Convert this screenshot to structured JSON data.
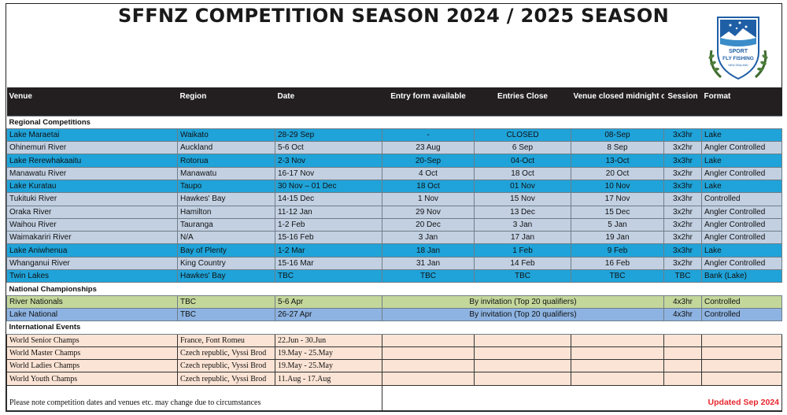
{
  "title": "SFFNZ COMPETITION SEASON 2024 / 2025 SEASON",
  "logo": {
    "line1": "SPORT",
    "line2": "FLY FISHING",
    "line3": "NEW ZEALAND"
  },
  "headers": [
    "Venue",
    "Region",
    "Date",
    "Entry form available",
    "Entries Close",
    "Venue closed midnight of",
    "Session",
    "Format"
  ],
  "sections": {
    "regional": "Regional Competitions",
    "national": "National Championships",
    "international": "International Events"
  },
  "regional_rows": [
    {
      "style": "blue",
      "venue": "Lake Maraetai",
      "region": "Waikato",
      "date": "28-29 Sep",
      "entry": "-",
      "close": "CLOSED",
      "closed": "08-Sep",
      "session": "3x3hr",
      "format": "Lake"
    },
    {
      "style": "grey",
      "venue": "Ohinemuri River",
      "region": "Auckland",
      "date": "5-6 Oct",
      "entry": "23 Aug",
      "close": "6 Sep",
      "closed": "8 Sep",
      "session": "3x2hr",
      "format": "Angler Controlled"
    },
    {
      "style": "blue",
      "venue": "Lake Rerewhakaaitu",
      "region": "Rotorua",
      "date": "2-3 Nov",
      "entry": "20-Sep",
      "close": "04-Oct",
      "closed": "13-Oct",
      "session": "3x3hr",
      "format": "Lake"
    },
    {
      "style": "grey",
      "venue": "Manawatu River",
      "region": "Manawatu",
      "date": "16-17 Nov",
      "entry": "4 Oct",
      "close": "18 Oct",
      "closed": "20 Oct",
      "session": "3x2hr",
      "format": "Angler Controlled"
    },
    {
      "style": "blue",
      "venue": "Lake Kuratau",
      "region": "Taupo",
      "date": "30 Nov – 01 Dec",
      "entry": "18 Oct",
      "close": "01 Nov",
      "closed": "10 Nov",
      "session": "3x3hr",
      "format": "Lake"
    },
    {
      "style": "grey",
      "venue": "Tukituki River",
      "region": "Hawkes' Bay",
      "date": "14-15 Dec",
      "entry": "1 Nov",
      "close": "15 Nov",
      "closed": "17 Nov",
      "session": "3x3hr",
      "format": "Controlled"
    },
    {
      "style": "grey",
      "venue": "Oraka River",
      "region": "Hamilton",
      "date": "11-12 Jan",
      "entry": "29 Nov",
      "close": "13 Dec",
      "closed": "15 Dec",
      "session": "3x2hr",
      "format": "Angler Controlled"
    },
    {
      "style": "grey",
      "venue": "Waihou River",
      "region": "Tauranga",
      "date": "1-2 Feb",
      "entry": "20 Dec",
      "close": "3 Jan",
      "closed": "5 Jan",
      "session": "3x2hr",
      "format": "Angler Controlled"
    },
    {
      "style": "grey",
      "venue": "Waimakariri River",
      "region": "N/A",
      "date": "15-16 Feb",
      "entry": "3 Jan",
      "close": "17 Jan",
      "closed": "19 Jan",
      "session": "3x2hr",
      "format": "Angler Controlled"
    },
    {
      "style": "blue",
      "venue": "Lake Aniwhenua",
      "region": "Bay of Plenty",
      "date": "1-2 Mar",
      "entry": "18 Jan",
      "close": "1 Feb",
      "closed": "9 Feb",
      "session": "3x3hr",
      "format": "Lake"
    },
    {
      "style": "grey",
      "venue": "Whanganui River",
      "region": "King Country",
      "date": "15-16 Mar",
      "entry": "31 Jan",
      "close": "14 Feb",
      "closed": "16 Feb",
      "session": "3x2hr",
      "format": "Angler Controlled"
    },
    {
      "style": "blue",
      "venue": "Twin Lakes",
      "region": "Hawkes' Bay",
      "date": "TBC",
      "entry": "TBC",
      "close": "TBC",
      "closed": "TBC",
      "session": "TBC",
      "format": "Bank (Lake)"
    }
  ],
  "national_rows": [
    {
      "style": "green",
      "venue": "River Nationals",
      "region": "TBC",
      "date": "5-6 Apr",
      "note": "By invitation (Top 20 qualifiers)",
      "session": "4x3hr",
      "format": "Controlled"
    },
    {
      "style": "natblue",
      "venue": "Lake National",
      "region": "TBC",
      "date": "26-27 Apr",
      "note": "By invitation (Top 20 qualifiers)",
      "session": "4x3hr",
      "format": "Controlled"
    }
  ],
  "international_rows": [
    {
      "venue": "World Senior Champs",
      "region": "France,  Font Romeu",
      "date": "22.Jun - 30.Jun"
    },
    {
      "venue": "World Master Champs",
      "region": "Czech republic, Vyssi Brod",
      "date": "19.May - 25.May"
    },
    {
      "venue": "World Ladies Champs",
      "region": "Czech republic, Vyssi Brod",
      "date": "19.May - 25.May"
    },
    {
      "venue": "World Youth Champs",
      "region": "Czech republic, Vyssi Brod",
      "date": "11.Aug - 17.Aug"
    }
  ],
  "footer": {
    "note": "Please note competition dates and venues etc. may change due to circumstances",
    "updated": "Updated Sep 2024"
  },
  "colors": {
    "lake_row": "#1fa3d9",
    "river_row": "#c2d0e2",
    "river_nationals": "#c4d79b",
    "lake_national": "#8db3e2",
    "international": "#fbe4d5",
    "header": "#231f20",
    "updated": "#e8262d"
  }
}
